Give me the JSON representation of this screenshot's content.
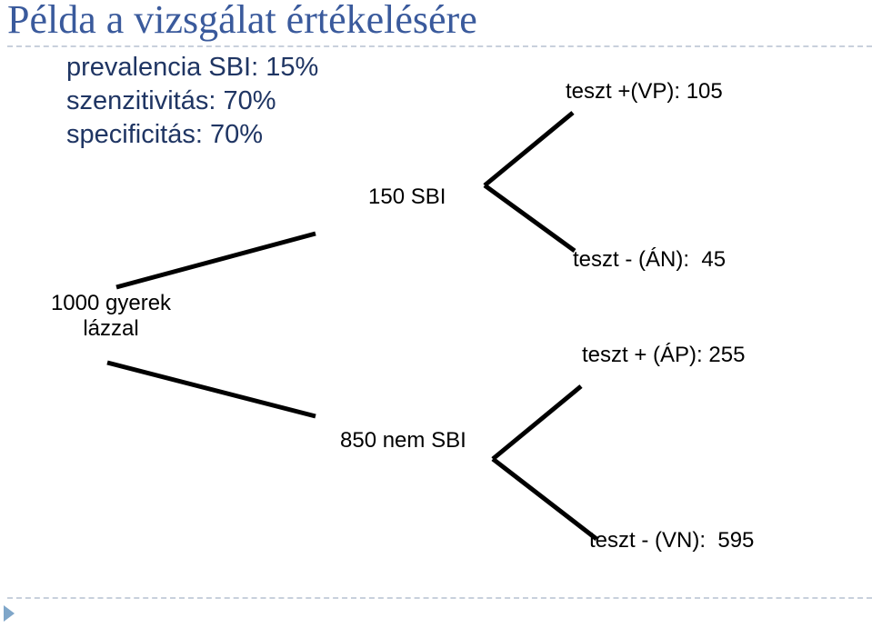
{
  "title": "Példa a vizsgálat értékelésére",
  "parameters": [
    "prevalencia SBI: 15%",
    "szenzitivitás: 70%",
    "specificitás: 70%"
  ],
  "tree": {
    "root": {
      "line1": "1000 gyerek",
      "line2": "lázzal"
    },
    "branch_positive": "150 SBI",
    "branch_negative": "850 nem SBI",
    "outcomes": {
      "vp": "teszt +(VP): 105",
      "an": "teszt - (ÁN):  45",
      "ap": "teszt + (ÁP): 255",
      "vn": "teszt - (VN):  595"
    }
  },
  "colors": {
    "title": "#3a5a9c",
    "parameters": "#1f3563",
    "rule": "#c8d0dc",
    "bullet": "#7fa6c9"
  }
}
